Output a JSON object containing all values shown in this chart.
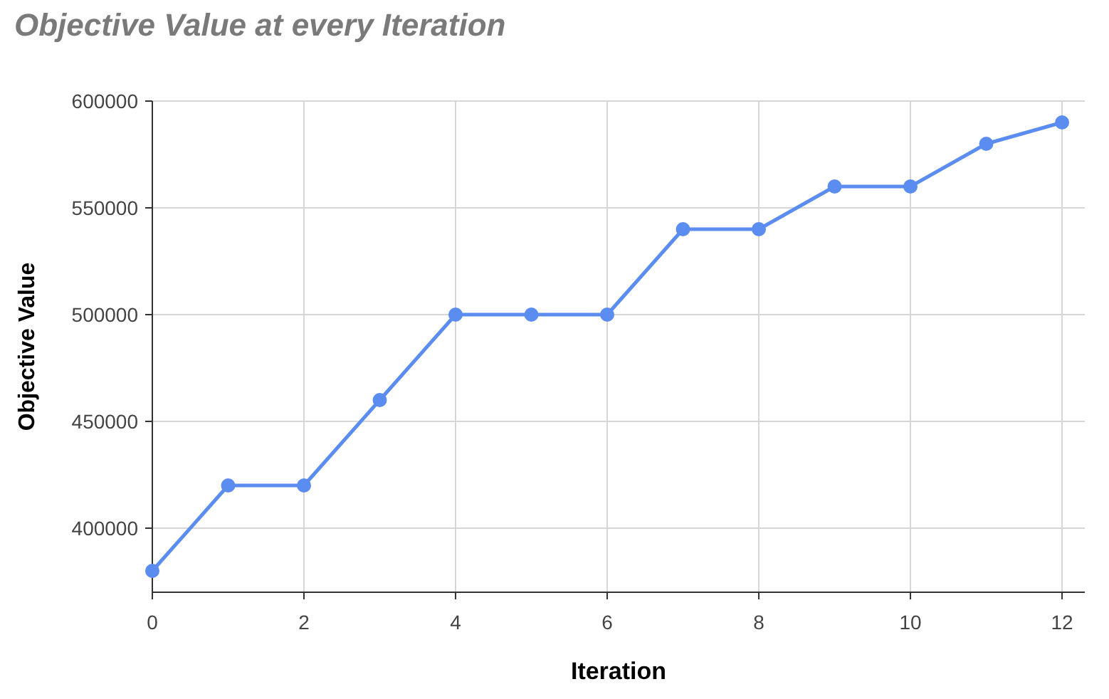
{
  "chart_data": {
    "type": "line",
    "title": "Objective Value at every Iteration",
    "xlabel": "Iteration",
    "ylabel": "Objective Value",
    "x": [
      0,
      1,
      2,
      3,
      4,
      5,
      6,
      7,
      8,
      9,
      10,
      11,
      12
    ],
    "series": [
      {
        "color": "#5b8cf0",
        "values": [
          380000,
          420000,
          420000,
          460000,
          500000,
          500000,
          500000,
          540000,
          540000,
          560000,
          560000,
          580000,
          590000
        ]
      }
    ],
    "xlim": [
      0,
      12.3
    ],
    "xticks": [
      0,
      2,
      4,
      6,
      8,
      10,
      12
    ],
    "ylim": [
      370000,
      600000
    ],
    "yticks": [
      400000,
      450000,
      500000,
      550000,
      600000
    ],
    "grid": true,
    "marker": "circle",
    "line_style": "solid"
  }
}
